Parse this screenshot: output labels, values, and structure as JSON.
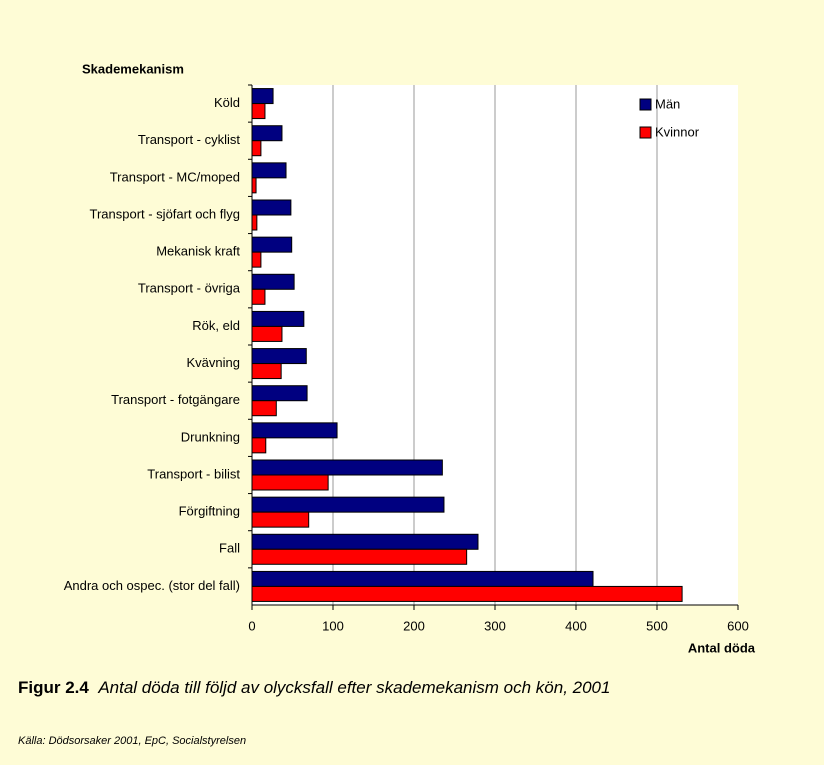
{
  "chart_data": {
    "type": "barh",
    "y_axis_title": "Skademekanism",
    "x_axis_label": "Antal döda",
    "categories": [
      "Köld",
      "Transport - cyklist",
      "Transport - MC/moped",
      "Transport - sjöfart och flyg",
      "Mekanisk kraft",
      "Transport - övriga",
      "Rök, eld",
      "Kvävning",
      "Transport - fotgängare",
      "Drunkning",
      "Transport - bilist",
      "Förgiftning",
      "Fall",
      "Andra och ospec. (stor del fall)"
    ],
    "series": [
      {
        "name": "Män",
        "color": "#000080",
        "values": [
          26,
          37,
          42,
          48,
          49,
          52,
          64,
          67,
          68,
          105,
          235,
          237,
          279,
          421
        ]
      },
      {
        "name": "Kvinnor",
        "color": "#ff0000",
        "values": [
          16,
          11,
          5,
          6,
          11,
          16,
          37,
          36,
          30,
          17,
          94,
          70,
          265,
          531
        ]
      }
    ],
    "xlim": [
      0,
      600
    ],
    "xticks": [
      0,
      100,
      200,
      300,
      400,
      500,
      600
    ],
    "grid": true,
    "legend": "upper right",
    "figure_label": "Figur 2.4",
    "caption": "Antal döda till följd av olycksfall efter skademekanism och kön, 2001",
    "source": "Källa: Dödsorsaker 2001, EpC, Socialstyrelsen"
  }
}
